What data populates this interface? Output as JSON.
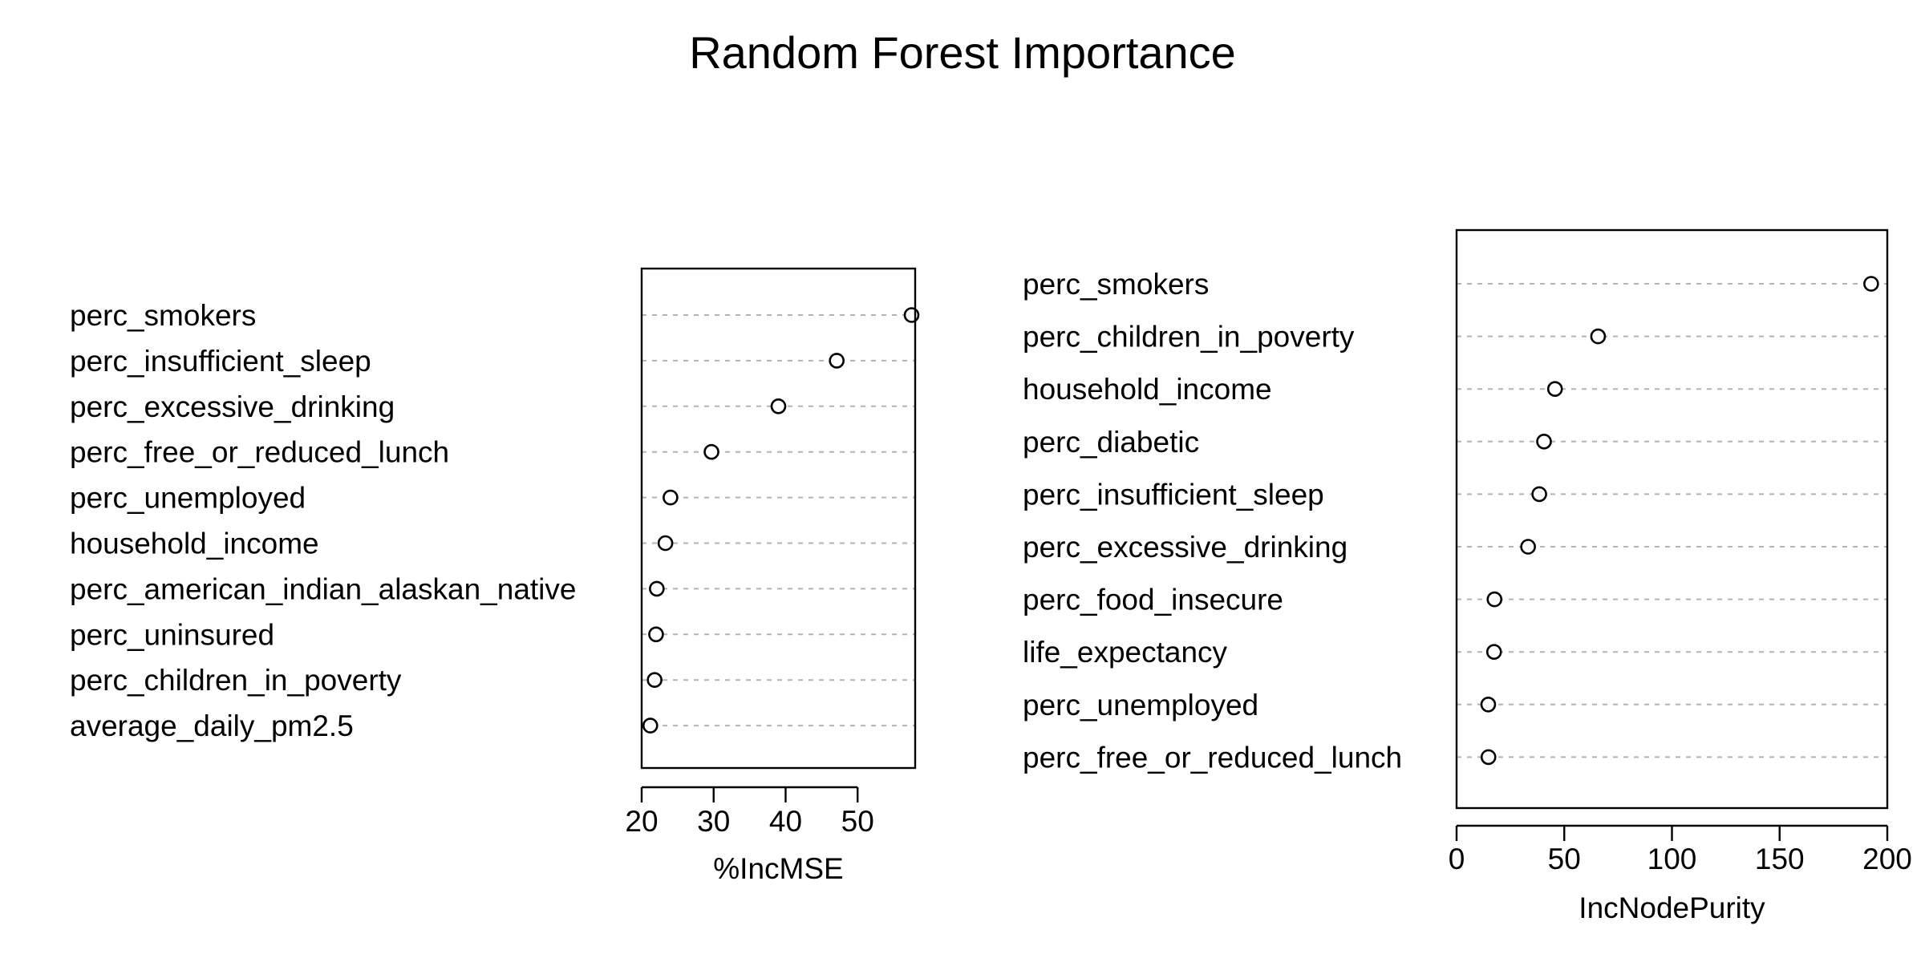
{
  "chart_data": {
    "type": "scatter",
    "title": "Random Forest Importance",
    "panels": [
      {
        "xlabel": "%IncMSE",
        "xlim": [
          20,
          58
        ],
        "xticks": [
          20,
          30,
          40,
          50
        ],
        "categories": [
          "perc_smokers",
          "perc_insufficient_sleep",
          "perc_excessive_drinking",
          "perc_free_or_reduced_lunch",
          "perc_unemployed",
          "household_income",
          "perc_american_indian_alaskan_native",
          "perc_uninsured",
          "perc_children_in_poverty",
          "average_daily_pm2.5"
        ],
        "values": [
          57.5,
          47.1,
          39.0,
          29.7,
          24.0,
          23.3,
          22.1,
          22.0,
          21.8,
          21.2
        ]
      },
      {
        "xlabel": "IncNodePurity",
        "xlim": [
          0,
          200
        ],
        "xticks": [
          0,
          50,
          100,
          150,
          200
        ],
        "categories": [
          "perc_smokers",
          "perc_children_in_poverty",
          "household_income",
          "perc_diabetic",
          "perc_insufficient_sleep",
          "perc_excessive_drinking",
          "perc_food_insecure",
          "life_expectancy",
          "perc_unemployed",
          "perc_free_or_reduced_lunch"
        ],
        "values": [
          192.5,
          65.7,
          45.7,
          40.6,
          38.4,
          33.2,
          17.6,
          17.4,
          14.7,
          14.8
        ]
      }
    ]
  }
}
